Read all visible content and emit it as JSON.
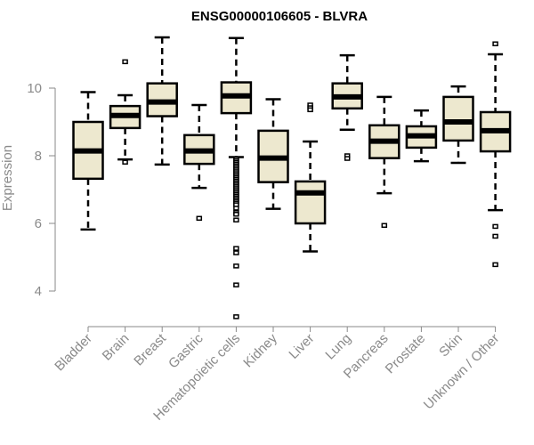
{
  "chart_data": {
    "type": "boxplot",
    "title": "ENSG00000106605 - BLVRA",
    "xlabel": "",
    "ylabel": "Expression",
    "ylim": [
      3.0,
      11.6
    ],
    "yticks": [
      4,
      6,
      8,
      10
    ],
    "grid": false,
    "box_color": "#ede8cf",
    "categories": [
      "Bladder",
      "Brain",
      "Breast",
      "Gastric",
      "Hematopoietic cells",
      "Kidney",
      "Liver",
      "Lung",
      "Pancreas",
      "Prostate",
      "Skin",
      "Unknown / Other"
    ],
    "boxes": [
      {
        "min": 5.82,
        "q1": 7.32,
        "median": 8.14,
        "q3": 9.0,
        "max": 9.88,
        "outliers": []
      },
      {
        "min": 7.89,
        "q1": 8.82,
        "median": 9.19,
        "q3": 9.47,
        "max": 9.79,
        "outliers": [
          10.78,
          7.81
        ]
      },
      {
        "min": 7.74,
        "q1": 9.17,
        "median": 9.59,
        "q3": 10.14,
        "max": 11.5,
        "outliers": []
      },
      {
        "min": 7.05,
        "q1": 7.76,
        "median": 8.14,
        "q3": 8.61,
        "max": 9.5,
        "outliers": [
          6.15
        ]
      },
      {
        "min": 7.96,
        "q1": 9.26,
        "median": 9.77,
        "q3": 10.17,
        "max": 11.48,
        "outliers": [
          7.9,
          7.85,
          7.8,
          7.75,
          7.7,
          7.65,
          7.6,
          7.55,
          7.5,
          7.45,
          7.4,
          7.35,
          7.3,
          7.25,
          7.2,
          7.15,
          7.1,
          7.05,
          7.0,
          6.95,
          6.9,
          6.85,
          6.8,
          6.75,
          6.7,
          6.65,
          6.6,
          6.55,
          6.45,
          6.32,
          6.27,
          6.1,
          5.26,
          5.13,
          4.74,
          4.18,
          3.24
        ]
      },
      {
        "min": 6.43,
        "q1": 7.22,
        "median": 7.93,
        "q3": 8.74,
        "max": 9.67,
        "outliers": []
      },
      {
        "min": 5.17,
        "q1": 6.0,
        "median": 6.9,
        "q3": 7.24,
        "max": 8.42,
        "outliers": [
          9.5,
          9.42,
          9.36
        ]
      },
      {
        "min": 8.77,
        "q1": 9.4,
        "median": 9.74,
        "q3": 10.14,
        "max": 10.97,
        "outliers": [
          8.0,
          7.92
        ]
      },
      {
        "min": 6.89,
        "q1": 7.93,
        "median": 8.43,
        "q3": 8.9,
        "max": 9.74,
        "outliers": [
          5.94
        ]
      },
      {
        "min": 7.84,
        "q1": 8.24,
        "median": 8.59,
        "q3": 8.87,
        "max": 9.34,
        "outliers": []
      },
      {
        "min": 7.79,
        "q1": 8.45,
        "median": 9.0,
        "q3": 9.74,
        "max": 10.05,
        "outliers": []
      },
      {
        "min": 6.39,
        "q1": 8.13,
        "median": 8.74,
        "q3": 9.29,
        "max": 11.0,
        "outliers": [
          11.31,
          5.91,
          5.62,
          4.78
        ]
      }
    ]
  }
}
